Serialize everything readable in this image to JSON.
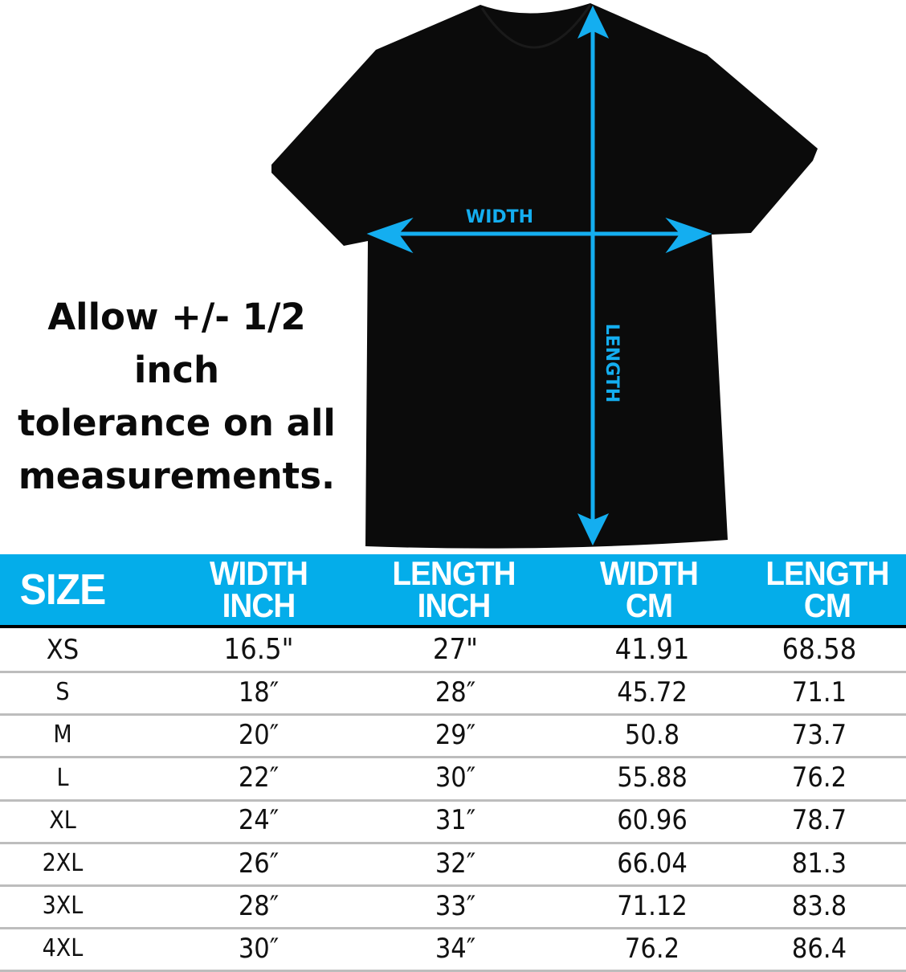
{
  "diagram": {
    "width_label": "WIDTH",
    "length_label": "LENGTH",
    "arrow_color": "#14aef0",
    "shirt_color": "#0b0b0b"
  },
  "tolerance_note": [
    "Allow +/- 1/2 inch",
    "tolerance on all",
    "measurements."
  ],
  "table": {
    "header_color": "#04adea",
    "headers": [
      [
        "SIZE"
      ],
      [
        "WIDTH",
        "INCH"
      ],
      [
        "LENGTH",
        "INCH"
      ],
      [
        "WIDTH",
        "CM"
      ],
      [
        "LENGTH",
        "CM"
      ]
    ],
    "rows": [
      [
        "XS",
        "16.5\"",
        "27\"",
        "41.91",
        "68.58"
      ],
      [
        "S",
        "18″",
        "28″",
        "45.72",
        "71.1"
      ],
      [
        "M",
        "20″",
        "29″",
        "50.8",
        "73.7"
      ],
      [
        "L",
        "22″",
        "30″",
        "55.88",
        "76.2"
      ],
      [
        "XL",
        "24″",
        "31″",
        "60.96",
        "78.7"
      ],
      [
        "2XL",
        "26″",
        "32″",
        "66.04",
        "81.3"
      ],
      [
        "3XL",
        "28″",
        "33″",
        "71.12",
        "83.8"
      ],
      [
        "4XL",
        "30″",
        "34″",
        "76.2",
        "86.4"
      ]
    ]
  }
}
